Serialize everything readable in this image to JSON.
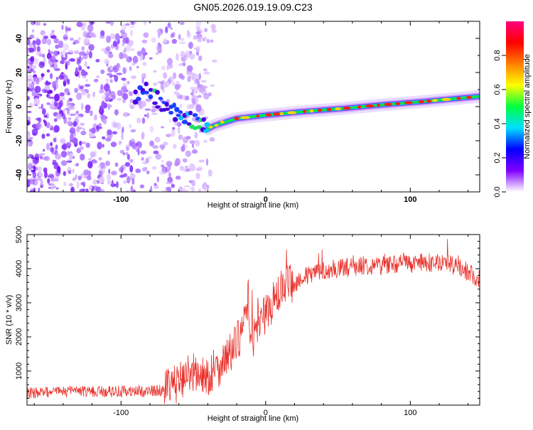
{
  "title": "GN05.2026.019.19.09.C23",
  "chart_data": [
    {
      "type": "heatmap",
      "name": "spectrogram",
      "xlabel": "Height of straight line (km)",
      "ylabel": "Frequency (Hz)",
      "xlim": [
        -165,
        148
      ],
      "ylim": [
        -50,
        50
      ],
      "xticks": [
        -100,
        0,
        100
      ],
      "yticks": [
        -40,
        -20,
        0,
        20,
        40
      ],
      "noise_region_x": [
        -165,
        -40
      ],
      "trace_points": [
        {
          "x": -85,
          "y": 10
        },
        {
          "x": -70,
          "y": 0
        },
        {
          "x": -55,
          "y": -8
        },
        {
          "x": -40,
          "y": -13
        },
        {
          "x": -35,
          "y": -11
        },
        {
          "x": -20,
          "y": -7
        },
        {
          "x": 0,
          "y": -5
        },
        {
          "x": 25,
          "y": -3
        },
        {
          "x": 55,
          "y": -1
        },
        {
          "x": 80,
          "y": 1
        },
        {
          "x": 110,
          "y": 3
        },
        {
          "x": 148,
          "y": 6
        }
      ],
      "colorbar": {
        "label": "Normalized spectral amplitude",
        "range": [
          0,
          1
        ],
        "ticks": [
          "0.0",
          "0.2",
          "0.4",
          "0.6",
          "0.8"
        ],
        "tick_values": [
          0,
          0.2,
          0.4,
          0.6,
          0.8
        ],
        "colors": [
          "#ffffff",
          "#8000ff",
          "#0000ff",
          "#00e0ff",
          "#00ff40",
          "#ffff00",
          "#ff8000",
          "#ff0000",
          "#ff0080"
        ]
      }
    },
    {
      "type": "line",
      "name": "snr",
      "xlabel": "Height of straight line (km)",
      "ylabel": "SNR (10 * v/v)",
      "xlim": [
        -165,
        148
      ],
      "ylim": [
        0,
        5000
      ],
      "xticks": [
        -100,
        0,
        100
      ],
      "yticks": [
        1000,
        2000,
        3000,
        4000,
        5000
      ],
      "color": "#e8302a",
      "series": [
        {
          "name": "SNR",
          "x": [
            -165,
            -150,
            -130,
            -110,
            -90,
            -75,
            -65,
            -60,
            -55,
            -50,
            -45,
            -40,
            -35,
            -30,
            -25,
            -20,
            -15,
            -12,
            -10,
            -5,
            0,
            5,
            10,
            15,
            20,
            25,
            30,
            35,
            40,
            50,
            60,
            70,
            80,
            90,
            100,
            110,
            120,
            130,
            140,
            148
          ],
          "values": [
            350,
            380,
            400,
            400,
            400,
            420,
            500,
            700,
            900,
            1000,
            800,
            850,
            1000,
            1250,
            1500,
            1800,
            2300,
            3200,
            1800,
            2400,
            2700,
            3000,
            3300,
            3500,
            3550,
            3750,
            3800,
            3900,
            3950,
            4000,
            4050,
            4100,
            4100,
            4150,
            4150,
            4150,
            4200,
            4100,
            3900,
            3700
          ]
        }
      ]
    }
  ]
}
